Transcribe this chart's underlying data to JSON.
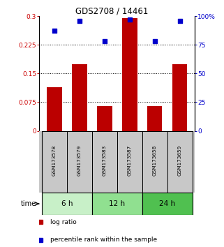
{
  "title": "GDS2708 / 14461",
  "samples": [
    "GSM173578",
    "GSM173579",
    "GSM173583",
    "GSM173587",
    "GSM173658",
    "GSM173659"
  ],
  "log_ratio": [
    0.115,
    0.175,
    0.065,
    0.295,
    0.065,
    0.175
  ],
  "percentile_rank": [
    87,
    96,
    78,
    97,
    78,
    96
  ],
  "time_groups": [
    {
      "label": "6 h",
      "samples": [
        0,
        1
      ],
      "color": "#c8f0c8"
    },
    {
      "label": "12 h",
      "samples": [
        2,
        3
      ],
      "color": "#90e090"
    },
    {
      "label": "24 h",
      "samples": [
        4,
        5
      ],
      "color": "#50c050"
    }
  ],
  "ylim_left": [
    0,
    0.3
  ],
  "ylim_right": [
    0,
    100
  ],
  "yticks_left": [
    0,
    0.075,
    0.15,
    0.225,
    0.3
  ],
  "ytick_labels_left": [
    "0",
    "0.075",
    "0.15",
    "0.225",
    "0.3"
  ],
  "yticks_right": [
    0,
    25,
    50,
    75,
    100
  ],
  "ytick_labels_right": [
    "0",
    "25",
    "50",
    "75",
    "100%"
  ],
  "hgrid_values": [
    0.075,
    0.15,
    0.225
  ],
  "bar_color": "#bb0000",
  "dot_color": "#0000cc",
  "bar_width": 0.6,
  "legend_items": [
    {
      "label": "log ratio",
      "color": "#bb0000"
    },
    {
      "label": "percentile rank within the sample",
      "color": "#0000cc"
    }
  ],
  "time_label": "time",
  "sample_bg": "#c8c8c8",
  "figure_bg": "#ffffff"
}
